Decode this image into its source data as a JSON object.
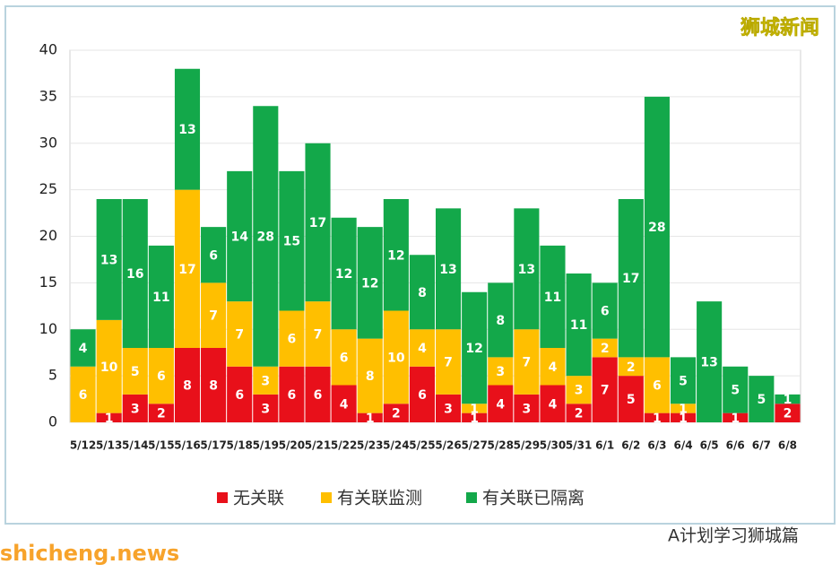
{
  "chart_data": {
    "type": "stacked-bar",
    "categories": [
      "5/12",
      "5/13",
      "5/14",
      "5/15",
      "5/16",
      "5/17",
      "5/18",
      "5/19",
      "5/20",
      "5/21",
      "5/22",
      "5/23",
      "5/24",
      "5/25",
      "5/26",
      "5/27",
      "5/28",
      "5/29",
      "5/30",
      "5/31",
      "6/1",
      "6/2",
      "6/3",
      "6/4",
      "6/5",
      "6/6",
      "6/7",
      "6/8"
    ],
    "series": [
      {
        "name": "无关联",
        "color": "#e8101a",
        "values": [
          0,
          1,
          3,
          2,
          8,
          8,
          6,
          3,
          6,
          6,
          4,
          1,
          2,
          6,
          3,
          1,
          4,
          3,
          4,
          2,
          7,
          5,
          1,
          1,
          0,
          1,
          0,
          2
        ]
      },
      {
        "name": "有关联监测",
        "color": "#ffbf00",
        "values": [
          6,
          10,
          5,
          6,
          17,
          7,
          7,
          3,
          6,
          7,
          6,
          8,
          10,
          4,
          7,
          1,
          3,
          7,
          4,
          3,
          2,
          2,
          6,
          1,
          0,
          0,
          0,
          0
        ]
      },
      {
        "name": "有关联已隔离",
        "color": "#13a84a",
        "values": [
          4,
          13,
          16,
          11,
          13,
          6,
          14,
          28,
          15,
          17,
          12,
          12,
          12,
          8,
          13,
          12,
          8,
          13,
          11,
          11,
          6,
          17,
          28,
          5,
          13,
          5,
          5,
          1
        ]
      }
    ],
    "ylim": [
      0,
      40
    ],
    "yticks": [
      0,
      5,
      10,
      15,
      20,
      25,
      30,
      35,
      40
    ],
    "grid": true,
    "legend": "bottom",
    "annotations": [
      "狮城新闻",
      "A计划学习狮城篇",
      "shicheng.news"
    ]
  }
}
